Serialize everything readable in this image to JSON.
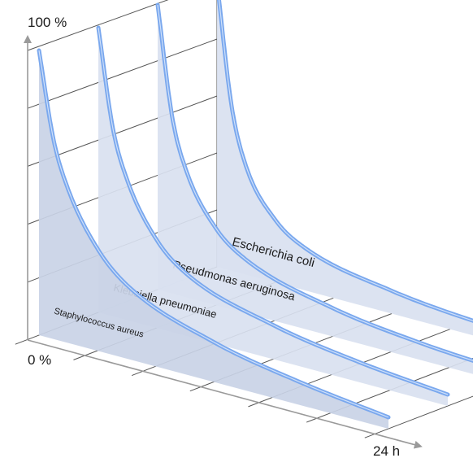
{
  "chart_data": {
    "type": "area",
    "title": "",
    "y_top_label": "100 %",
    "y_bottom_label": "0 %",
    "x_end_label": "24 h",
    "xlim": [
      0,
      24
    ],
    "ylim": [
      0,
      100
    ],
    "grid": true,
    "series": [
      {
        "name": "Escherichia coli",
        "x": [
          0,
          1,
          2,
          4,
          6,
          12,
          18,
          24
        ],
        "y": [
          100,
          58,
          38,
          22,
          15,
          8,
          5,
          4
        ]
      },
      {
        "name": "Pseudmonas aeruginosa",
        "x": [
          0,
          1,
          2,
          4,
          6,
          12,
          18,
          24
        ],
        "y": [
          100,
          62,
          44,
          27,
          19,
          10,
          6,
          4
        ]
      },
      {
        "name": "Klebsiella pneumoniae",
        "x": [
          0,
          1,
          2,
          4,
          6,
          12,
          18,
          24
        ],
        "y": [
          100,
          66,
          49,
          31,
          22,
          12,
          7,
          4
        ]
      },
      {
        "name": "Staphylococcus aureus",
        "x": [
          0,
          1,
          2,
          4,
          6,
          12,
          18,
          24
        ],
        "y": [
          100,
          70,
          54,
          36,
          26,
          14,
          8,
          4
        ]
      }
    ]
  },
  "colors": {
    "fill": "#c9d3e6",
    "fill_back": "#d9e1f0",
    "edge": "#7aa8ee",
    "grid": "#555555",
    "axis": "#9a9a9a"
  }
}
